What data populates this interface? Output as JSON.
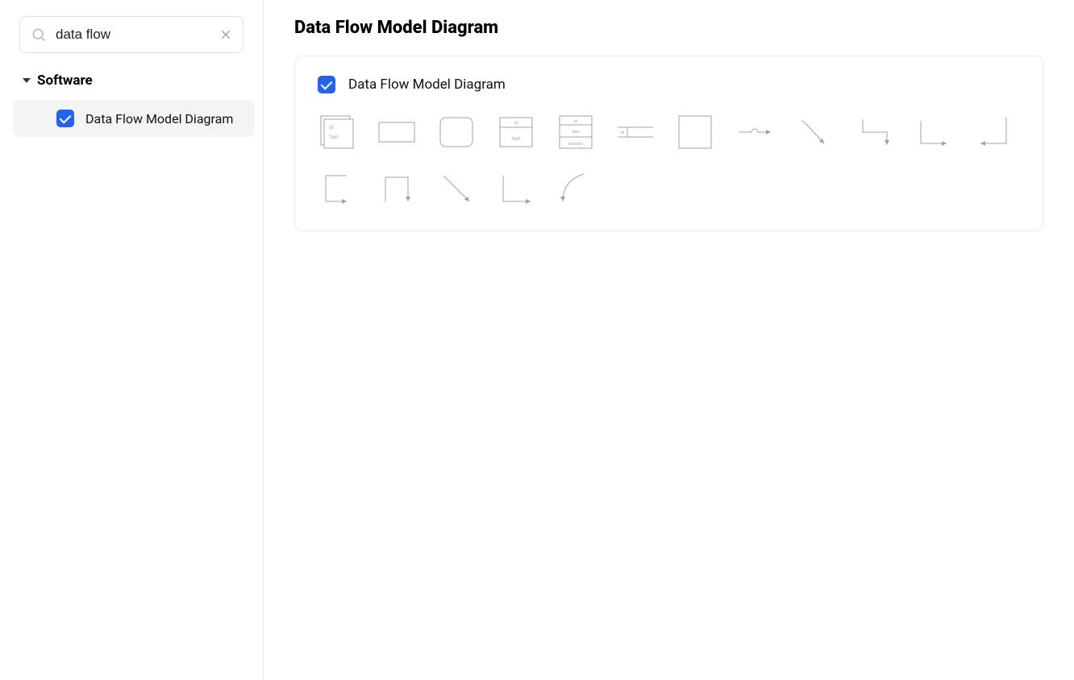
{
  "search": {
    "value": "data flow",
    "placeholder": "Search"
  },
  "sidebar": {
    "category": {
      "label": "Software",
      "expanded": true
    },
    "items": [
      {
        "label": "Data Flow Model Diagram",
        "checked": true,
        "selected": true
      }
    ]
  },
  "main": {
    "title": "Data Flow Model Diagram",
    "panel": {
      "title": "Data Flow Model Diagram",
      "checked": true
    }
  },
  "colors": {
    "accent": "#2563eb",
    "shape_stroke": "#9ca3af",
    "shape_fill": "#ffffff",
    "shape_text": "#9ca3af",
    "panel_border": "#eaeaea",
    "sidebar_border": "#e5e5e5",
    "selected_bg": "#f3f4f6"
  },
  "shapes": {
    "row1": [
      {
        "name": "multi-document-shape",
        "type": "stacked-rect",
        "labels": [
          "id",
          "Text"
        ]
      },
      {
        "name": "rectangle-shape",
        "type": "rect"
      },
      {
        "name": "rounded-rectangle-shape",
        "type": "round-rect"
      },
      {
        "name": "data-store-two-row-shape",
        "type": "table-2",
        "labels": [
          "id",
          "text"
        ]
      },
      {
        "name": "data-store-three-row-shape",
        "type": "table-3",
        "labels": [
          "id",
          "text",
          "location"
        ]
      },
      {
        "name": "data-flow-bar-shape",
        "type": "flow-bar",
        "labels": [
          "id"
        ]
      },
      {
        "name": "square-shape",
        "type": "square"
      },
      {
        "name": "arrow-hump-shape",
        "type": "line-hump"
      },
      {
        "name": "arrow-diag-down-shape",
        "type": "diag-down"
      },
      {
        "name": "arrow-step-down-right-shape",
        "type": "step-down-right"
      },
      {
        "name": "arrow-step-right-down-shape",
        "type": "step-right-down"
      },
      {
        "name": "arrow-step-down-left-shape",
        "type": "step-down-left"
      }
    ],
    "row2": [
      {
        "name": "arrow-bracket-right-shape",
        "type": "bracket-right"
      },
      {
        "name": "arrow-bracket-down-shape",
        "type": "bracket-down"
      },
      {
        "name": "arrow-diag-simple-shape",
        "type": "diag-simple"
      },
      {
        "name": "arrow-l-right-shape",
        "type": "l-right"
      },
      {
        "name": "arrow-curve-shape",
        "type": "curve"
      }
    ]
  }
}
